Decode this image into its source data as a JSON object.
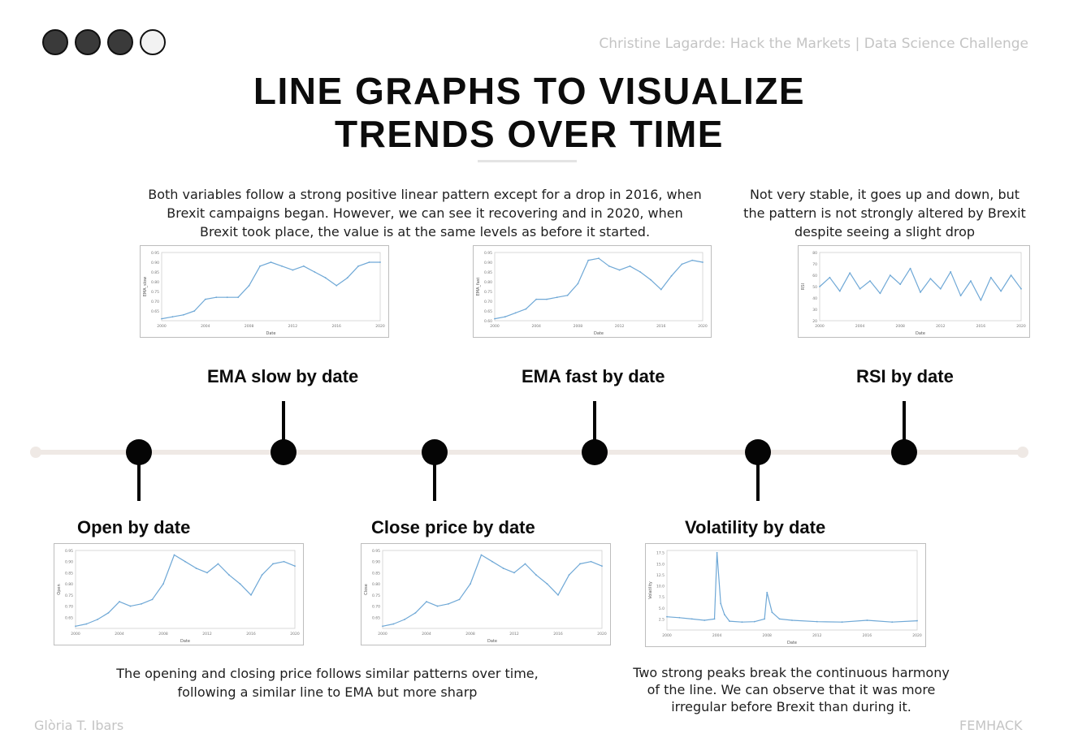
{
  "header": {
    "source": "Christine Lagarde: Hack the Markets | Data Science Challenge"
  },
  "title": {
    "line1": "LINE GRAPHS TO VISUALIZE",
    "line2": "TRENDS OVER TIME"
  },
  "descriptions": {
    "ema": "Both variables follow a strong positive linear pattern except for a drop in 2016, when Brexit campaigns began. However, we can see it recovering and in 2020, when Brexit took place, the value is at the same levels as before it started.",
    "rsi": "Not very stable, it goes up and down, but the pattern is not strongly altered by Brexit despite seeing a slight drop",
    "open_close": "The opening and closing price follows similar patterns over time, following a similar line to EMA but more sharp",
    "volatility": "Two strong peaks break the continuous harmony of the line. We can observe that it was more irregular before Brexit than during it."
  },
  "labels": {
    "ema_slow": "EMA slow by date",
    "ema_fast": "EMA fast by date",
    "rsi": "RSI by date",
    "open": "Open by date",
    "close": "Close price by date",
    "volatility": "Volatility by date"
  },
  "footer": {
    "author": "Glòria T. Ibars",
    "brand": "FEMHACK"
  },
  "colors": {
    "line": "#6fa8d6",
    "node": "#050505",
    "timeline": "#efe9e5"
  },
  "chart_data": [
    {
      "id": "ema-slow",
      "type": "line",
      "xlabel": "Date",
      "ylabel": "EMA_slow",
      "x": [
        2000,
        2001,
        2002,
        2003,
        2004,
        2005,
        2006,
        2007,
        2008,
        2009,
        2010,
        2011,
        2012,
        2013,
        2014,
        2015,
        2016,
        2017,
        2018,
        2019,
        2020
      ],
      "y": [
        0.61,
        0.62,
        0.63,
        0.65,
        0.71,
        0.72,
        0.72,
        0.72,
        0.78,
        0.88,
        0.9,
        0.88,
        0.86,
        0.88,
        0.85,
        0.82,
        0.78,
        0.82,
        0.88,
        0.9,
        0.9
      ],
      "ylim": [
        0.6,
        0.95
      ],
      "y_ticks": [
        "0.65",
        "0.70",
        "0.75",
        "0.80",
        "0.85",
        "0.90",
        "0.95"
      ]
    },
    {
      "id": "ema-fast",
      "type": "line",
      "xlabel": "Date",
      "ylabel": "EMA_fast",
      "x": [
        2000,
        2001,
        2002,
        2003,
        2004,
        2005,
        2006,
        2007,
        2008,
        2009,
        2010,
        2011,
        2012,
        2013,
        2014,
        2015,
        2016,
        2017,
        2018,
        2019,
        2020
      ],
      "y": [
        0.61,
        0.62,
        0.64,
        0.66,
        0.71,
        0.71,
        0.72,
        0.73,
        0.79,
        0.91,
        0.92,
        0.88,
        0.86,
        0.88,
        0.85,
        0.81,
        0.76,
        0.83,
        0.89,
        0.91,
        0.9
      ],
      "ylim": [
        0.6,
        0.95
      ],
      "y_ticks": [
        "0.60",
        "0.65",
        "0.70",
        "0.75",
        "0.80",
        "0.85",
        "0.90",
        "0.95"
      ]
    },
    {
      "id": "rsi",
      "type": "line",
      "xlabel": "Date",
      "ylabel": "RSI",
      "x": [
        2000,
        2001,
        2002,
        2003,
        2004,
        2005,
        2006,
        2007,
        2008,
        2009,
        2010,
        2011,
        2012,
        2013,
        2014,
        2015,
        2016,
        2017,
        2018,
        2019,
        2020
      ],
      "y": [
        50,
        58,
        46,
        62,
        48,
        55,
        44,
        60,
        52,
        66,
        45,
        57,
        48,
        63,
        42,
        55,
        38,
        58,
        46,
        60,
        48
      ],
      "ylim": [
        20,
        80
      ],
      "y_ticks": [
        "20",
        "30",
        "40",
        "50",
        "60",
        "70",
        "80"
      ]
    },
    {
      "id": "open",
      "type": "line",
      "xlabel": "Date",
      "ylabel": "Open",
      "x": [
        2000,
        2001,
        2002,
        2003,
        2004,
        2005,
        2006,
        2007,
        2008,
        2009,
        2010,
        2011,
        2012,
        2013,
        2014,
        2015,
        2016,
        2017,
        2018,
        2019,
        2020
      ],
      "y": [
        0.61,
        0.62,
        0.64,
        0.67,
        0.72,
        0.7,
        0.71,
        0.73,
        0.8,
        0.93,
        0.9,
        0.87,
        0.85,
        0.89,
        0.84,
        0.8,
        0.75,
        0.84,
        0.89,
        0.9,
        0.88
      ],
      "ylim": [
        0.6,
        0.95
      ],
      "y_ticks": [
        "0.65",
        "0.70",
        "0.75",
        "0.80",
        "0.85",
        "0.90",
        "0.95"
      ]
    },
    {
      "id": "close",
      "type": "line",
      "xlabel": "Date",
      "ylabel": "Close",
      "x": [
        2000,
        2001,
        2002,
        2003,
        2004,
        2005,
        2006,
        2007,
        2008,
        2009,
        2010,
        2011,
        2012,
        2013,
        2014,
        2015,
        2016,
        2017,
        2018,
        2019,
        2020
      ],
      "y": [
        0.61,
        0.62,
        0.64,
        0.67,
        0.72,
        0.7,
        0.71,
        0.73,
        0.8,
        0.93,
        0.9,
        0.87,
        0.85,
        0.89,
        0.84,
        0.8,
        0.75,
        0.84,
        0.89,
        0.9,
        0.88
      ],
      "ylim": [
        0.6,
        0.95
      ],
      "y_ticks": [
        "0.65",
        "0.70",
        "0.75",
        "0.80",
        "0.85",
        "0.90",
        "0.95"
      ]
    },
    {
      "id": "volatility",
      "type": "line",
      "xlabel": "Date",
      "ylabel": "Volatility",
      "x": [
        2000,
        2001,
        2002,
        2003,
        2003.8,
        2004,
        2004.3,
        2004.6,
        2005,
        2006,
        2007,
        2007.8,
        2008,
        2008.4,
        2009,
        2010,
        2012,
        2014,
        2016,
        2018,
        2020
      ],
      "y": [
        3.0,
        2.8,
        2.5,
        2.2,
        2.5,
        17.5,
        6.0,
        3.5,
        2.0,
        1.8,
        1.9,
        2.5,
        8.5,
        4.0,
        2.5,
        2.2,
        1.9,
        1.8,
        2.2,
        1.8,
        2.1
      ],
      "ylim": [
        0,
        18
      ],
      "y_ticks": [
        "2.5",
        "5.0",
        "7.5",
        "10.0",
        "12.5",
        "15.0",
        "17.5"
      ]
    }
  ]
}
